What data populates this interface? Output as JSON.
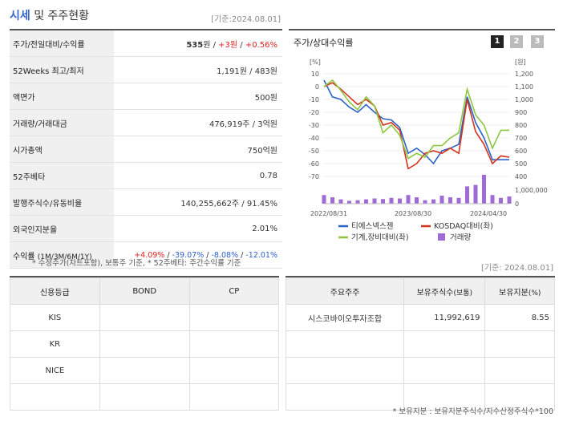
{
  "header": {
    "title_hl": "시세",
    "title_rest": " 및 주주현황",
    "date": "[기준:2024.08.01]"
  },
  "info": {
    "rows": [
      {
        "label": "주가/전일대비/수익률",
        "v1": "535",
        "u1": "원",
        "sep1": " / ",
        "v2": "+3",
        "u2": "원",
        "sep2": " / ",
        "v3": "+0.56%"
      },
      {
        "label": "52Weeks 최고/최저",
        "value": "1,191원 / 483원"
      },
      {
        "label": "액면가",
        "value": "500원"
      },
      {
        "label": "거래량/거래대금",
        "value": "476,919주 / 3억원"
      },
      {
        "label": "시가총액",
        "value": "750억원"
      },
      {
        "label": "52주베타",
        "value": "0.78"
      },
      {
        "label": "발행주식수/유동비율",
        "value": "140,255,662주 / 91.45%"
      },
      {
        "label": "외국인지분율",
        "value": "2.01%"
      }
    ],
    "returns_label": "수익률",
    "returns_sub": "(1M/3M/6M/1Y)",
    "ret1": "+4.09%",
    "ret2": "-39.07%",
    "ret3": "-8.08%",
    "ret4": "-12.01%",
    "note": "* 수정주가(차트포함), 보통주 기준, * 52주베타: 주간수익률 기준"
  },
  "chart": {
    "title": "주가/상대수익률",
    "periods": [
      "1",
      "2",
      "3"
    ],
    "left_unit": "[%]",
    "right_unit": "[원]",
    "left_ticks": [
      "10",
      "0",
      "-10",
      "-20",
      "-30",
      "-40",
      "-50",
      "-60",
      "-70"
    ],
    "right_ticks": [
      "1,200",
      "1,100",
      "1,000",
      "900",
      "800",
      "700",
      "600",
      "500",
      "400"
    ],
    "vol_tick": "1,000,000",
    "vol_zero": "0",
    "x_labels": [
      "2022/08/31",
      "2023/08/30",
      "2024/04/30"
    ],
    "legend": [
      "티에스넥스젠",
      "KOSDAQ대비(좌)",
      "기계,장비대비(좌)",
      "거래량"
    ],
    "colors": {
      "stock": "#2a62c7",
      "kosdaq": "#d4341c",
      "machine": "#8cc63f",
      "volume": "#a06bd6"
    }
  },
  "chart_data": {
    "type": "line",
    "series": [
      {
        "name": "티에스넥스젠",
        "values": [
          5,
          -8,
          -10,
          -16,
          -20,
          -14,
          -20,
          -25,
          -26,
          -32,
          -52,
          -48,
          -53,
          -60,
          -50,
          -48,
          -45,
          -8,
          -28,
          -40,
          -57,
          -57,
          -57
        ]
      },
      {
        "name": "KOSDAQ대비(좌)",
        "values": [
          0,
          3,
          -2,
          -8,
          -14,
          -10,
          -15,
          -30,
          -28,
          -34,
          -64,
          -60,
          -52,
          -50,
          -52,
          -48,
          -52,
          -10,
          -35,
          -45,
          -60,
          -54,
          -55
        ]
      },
      {
        "name": "기계,장비대비(좌)",
        "values": [
          0,
          5,
          -3,
          -12,
          -18,
          -8,
          -15,
          -36,
          -30,
          -38,
          -56,
          -52,
          -55,
          -46,
          -46,
          -40,
          -36,
          -2,
          -22,
          -30,
          -48,
          -34,
          -34
        ]
      }
    ],
    "volume": [
      0.3,
      0.22,
      0.15,
      0.1,
      0.12,
      0.15,
      0.18,
      0.16,
      0.2,
      0.18,
      0.3,
      0.22,
      0.12,
      0.15,
      0.28,
      0.22,
      0.2,
      0.6,
      0.65,
      1.0,
      0.3,
      0.2,
      0.25
    ],
    "ylim_left": [
      -70,
      10
    ],
    "ylim_right": [
      400,
      1200
    ]
  },
  "credit": {
    "headers": [
      "신용등급",
      "BOND",
      "CP"
    ],
    "rows": [
      "KIS",
      "KR",
      "NICE",
      ""
    ]
  },
  "holders": {
    "date": "[기준: 2024.08.01]",
    "headers": [
      "주요주주",
      "보유주식수",
      "(보통)",
      "보유지분",
      "(%)"
    ],
    "rows": [
      {
        "name": "시스코바이오투자조합",
        "shares": "11,992,619",
        "pct": "8.55"
      }
    ],
    "note": "* 보유지분 : 보유지분주식수/지수산정주식수*100"
  }
}
